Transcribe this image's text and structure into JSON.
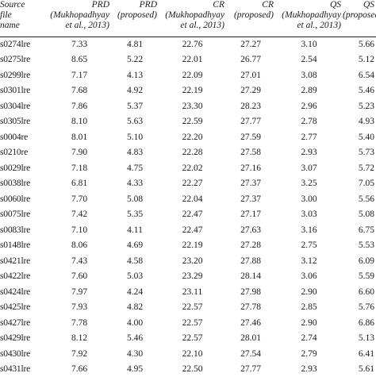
{
  "headers": [
    "Source\nfile\nname",
    "PRD\n(Mukhopadhyay\net al., 2013)",
    "PRD\n(proposed)",
    "CR\n(Mukhopadhyay\net al., 2013)",
    "CR\n(proposed)",
    "QS\n(Mukhopadhyay\net al., 2013)",
    "QS\n(proposed)"
  ],
  "rows": [
    [
      "s0274lre",
      "7.33",
      "4.81",
      "22.76",
      "27.27",
      "3.10",
      "5.66"
    ],
    [
      "s0275lre",
      "8.65",
      "5.22",
      "22.01",
      "26.77",
      "2.54",
      "5.12"
    ],
    [
      "s0299lre",
      "7.17",
      "4.13",
      "22.09",
      "27.01",
      "3.08",
      "6.54"
    ],
    [
      "s0301lre",
      "7.68",
      "4.92",
      "22.19",
      "27.29",
      "2.89",
      "5.46"
    ],
    [
      "s0304lre",
      "7.86",
      "5.37",
      "23.30",
      "28.23",
      "2.96",
      "5.23"
    ],
    [
      "s0305lre",
      "8.10",
      "5.63",
      "22.59",
      "27.77",
      "2.78",
      "4.93"
    ],
    [
      "s0004re",
      "8.01",
      "5.10",
      "22.20",
      "27.59",
      "2.77",
      "5.40"
    ],
    [
      "s0210re",
      "7.90",
      "4.83",
      "22.28",
      "27.58",
      "2.93",
      "5.73"
    ],
    [
      "s0029lre",
      "7.18",
      "4.75",
      "22.02",
      "27.16",
      "3.07",
      "5.72"
    ],
    [
      "s0038lre",
      "6.81",
      "4.33",
      "22.27",
      "27.37",
      "3.25",
      "7.05"
    ],
    [
      "s0060lre",
      "7.70",
      "5.08",
      "22.04",
      "27.37",
      "3.00",
      "5.56"
    ],
    [
      "s0075lre",
      "7.42",
      "5.35",
      "22.47",
      "27.17",
      "3.03",
      "5.08"
    ],
    [
      "s0083lre",
      "7.10",
      "4.11",
      "22.47",
      "27.63",
      "3.16",
      "6.75"
    ],
    [
      "s0148lre",
      "8.06",
      "4.69",
      "22.19",
      "27.28",
      "2.75",
      "5.53"
    ],
    [
      "s0421lre",
      "7.43",
      "4.58",
      "23.20",
      "27.88",
      "3.12",
      "6.09"
    ],
    [
      "s0422lre",
      "7.60",
      "5.03",
      "23.29",
      "28.14",
      "3.06",
      "5.59"
    ],
    [
      "s0424lre",
      "7.97",
      "4.24",
      "23.11",
      "27.98",
      "2.90",
      "6.60"
    ],
    [
      "s0425lre",
      "7.93",
      "4.82",
      "22.57",
      "27.78",
      "2.85",
      "5.76"
    ],
    [
      "s0427lre",
      "7.78",
      "4.00",
      "22.57",
      "27.46",
      "2.90",
      "6.86"
    ],
    [
      "s0429lre",
      "8.12",
      "5.46",
      "22.57",
      "28.01",
      "2.74",
      "5.13"
    ],
    [
      "s0430lre",
      "7.92",
      "4.30",
      "22.10",
      "27.54",
      "2.79",
      "6.41"
    ],
    [
      "s0431lre",
      "7.66",
      "4.95",
      "22.50",
      "27.77",
      "2.93",
      "5.61"
    ]
  ]
}
